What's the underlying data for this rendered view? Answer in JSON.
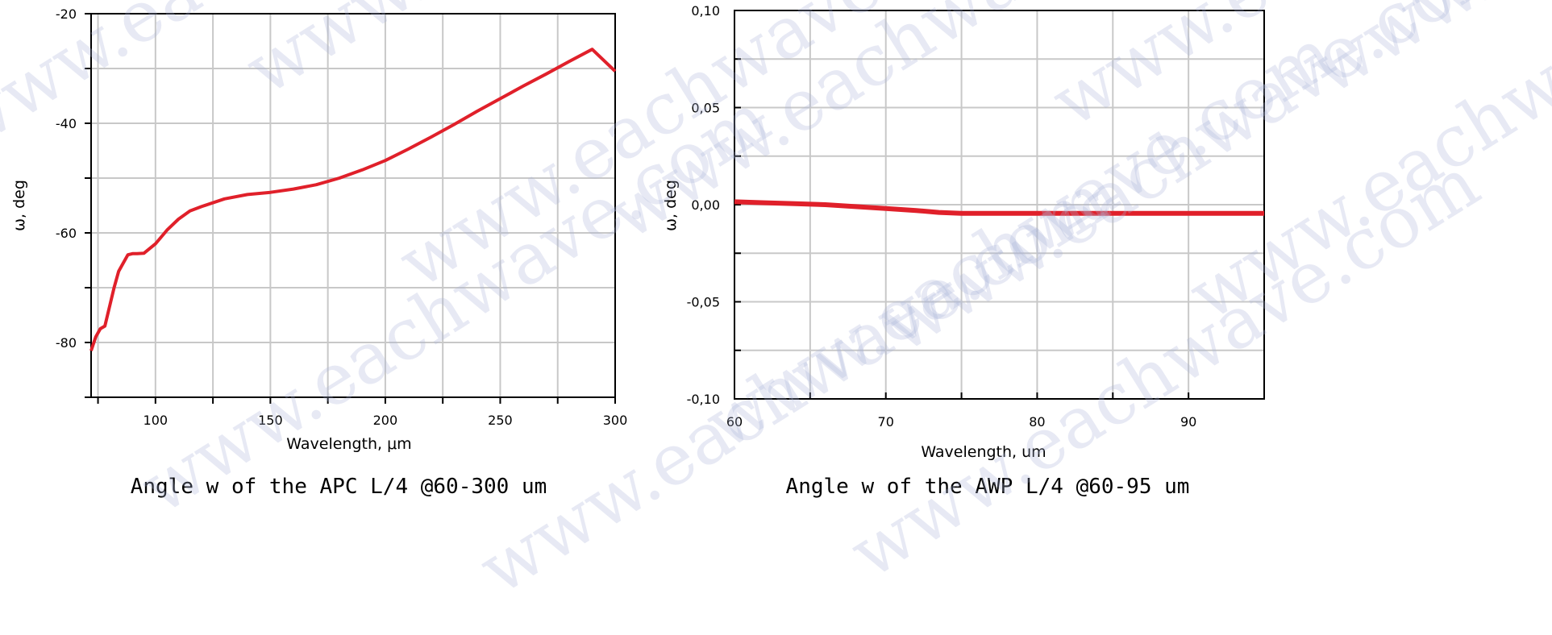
{
  "watermark": "www.eachwave.com",
  "colors": {
    "series": "#e0202a",
    "grid": "#c8c8c8",
    "axis": "#000000"
  },
  "chart_data": [
    {
      "type": "line",
      "ylabel": "ω, deg",
      "xlabel": "Wavelength, μm",
      "caption": "Angle w of the APC L/4 @60-300 um",
      "xlim": [
        72,
        300
      ],
      "ylim": [
        -90,
        -20
      ],
      "x_ticks": [
        100,
        150,
        200,
        250,
        300
      ],
      "x_tick_labels": [
        "100",
        "150",
        "200",
        "250",
        "300"
      ],
      "x_grid": [
        75,
        100,
        125,
        150,
        175,
        200,
        225,
        250,
        275,
        300
      ],
      "y_ticks": [
        -20,
        -40,
        -60,
        -80
      ],
      "y_tick_labels": [
        "-20",
        "-40",
        "-60",
        "-80"
      ],
      "y_grid": [
        -20,
        -30,
        -40,
        -50,
        -60,
        -70,
        -80,
        -90
      ],
      "grid": true,
      "series": [
        {
          "x": [
            72,
            74,
            76,
            78,
            80,
            82,
            84,
            86,
            88,
            90,
            92,
            95,
            100,
            105,
            110,
            115,
            120,
            130,
            140,
            150,
            160,
            170,
            180,
            190,
            200,
            210,
            220,
            230,
            240,
            250,
            260,
            270,
            280,
            290,
            300
          ],
          "y": [
            -81.5,
            -79,
            -77.5,
            -77,
            -73.5,
            -70,
            -67,
            -65.5,
            -64,
            -63.8,
            -63.8,
            -63.7,
            -62,
            -59.5,
            -57.5,
            -56,
            -55.2,
            -53.8,
            -53,
            -52.6,
            -52,
            -51.2,
            -50,
            -48.5,
            -46.8,
            -44.7,
            -42.5,
            -40.2,
            -37.8,
            -35.5,
            -33.2,
            -31,
            -28.7,
            -26.5,
            -30.5
          ]
        }
      ]
    },
    {
      "type": "line",
      "ylabel": "ω, deg",
      "xlabel": "Wavelength, um",
      "caption": "Angle w of the AWP L/4 @60-95 um",
      "xlim": [
        60,
        95
      ],
      "ylim": [
        -0.1,
        0.1
      ],
      "x_ticks": [
        60,
        70,
        80,
        90
      ],
      "x_tick_labels": [
        "60",
        "70",
        "80",
        "90"
      ],
      "x_grid": [
        60,
        65,
        70,
        75,
        80,
        85,
        90,
        95
      ],
      "y_ticks": [
        0.1,
        0.05,
        0.0,
        -0.05,
        -0.1
      ],
      "y_tick_labels": [
        "0,10",
        "0,05",
        "0,00",
        "-0,05",
        "-0,10"
      ],
      "y_grid": [
        0.1,
        0.075,
        0.05,
        0.025,
        0.0,
        -0.025,
        -0.05,
        -0.075,
        -0.1
      ],
      "grid": true,
      "series": [
        {
          "x": [
            60,
            62,
            64,
            66,
            68,
            70,
            72,
            73.5,
            75,
            80,
            85,
            90,
            95
          ],
          "y": [
            0.0015,
            0.001,
            0.0005,
            0.0,
            -0.001,
            -0.002,
            -0.003,
            -0.004,
            -0.0045,
            -0.0045,
            -0.0045,
            -0.0045,
            -0.0045
          ]
        }
      ]
    }
  ]
}
